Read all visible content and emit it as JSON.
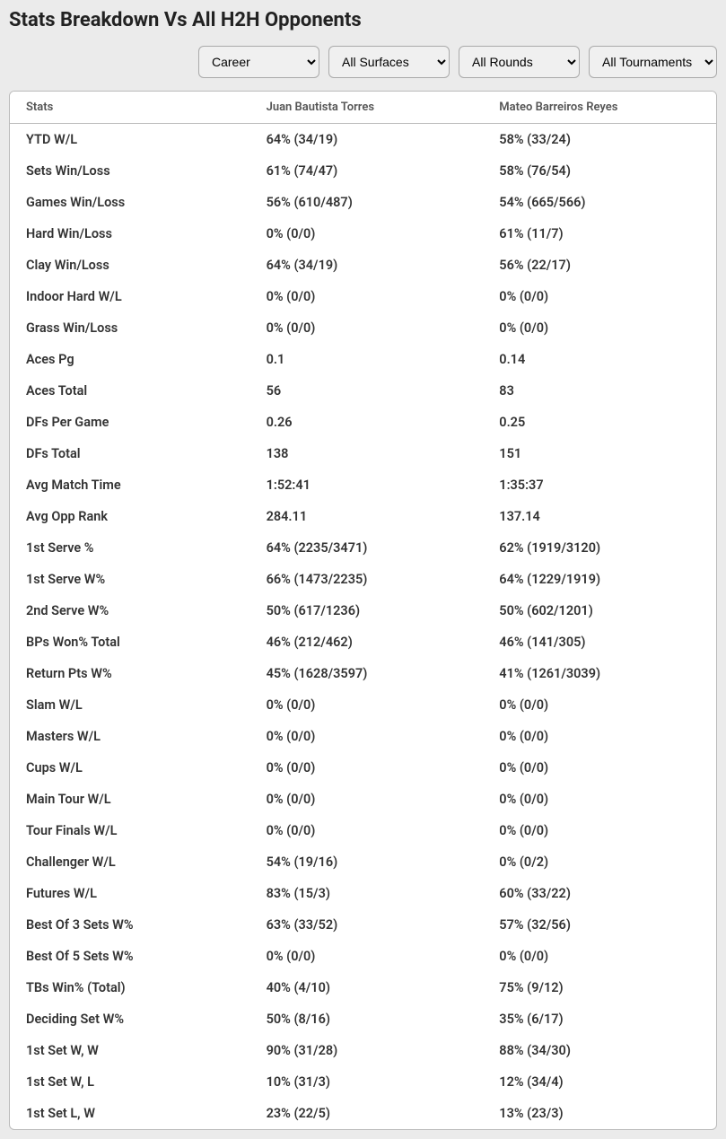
{
  "title": "Stats Breakdown Vs All H2H Opponents",
  "filters": {
    "period": "Career",
    "surface": "All Surfaces",
    "round": "All Rounds",
    "tournament": "All Tournaments"
  },
  "columns": {
    "stats": "Stats",
    "player1": "Juan Bautista Torres",
    "player2": "Mateo Barreiros Reyes"
  },
  "rows": [
    {
      "label": "YTD W/L",
      "p1": "64% (34/19)",
      "p2": "58% (33/24)"
    },
    {
      "label": "Sets Win/Loss",
      "p1": "61% (74/47)",
      "p2": "58% (76/54)"
    },
    {
      "label": "Games Win/Loss",
      "p1": "56% (610/487)",
      "p2": "54% (665/566)"
    },
    {
      "label": "Hard Win/Loss",
      "p1": "0% (0/0)",
      "p2": "61% (11/7)"
    },
    {
      "label": "Clay Win/Loss",
      "p1": "64% (34/19)",
      "p2": "56% (22/17)"
    },
    {
      "label": "Indoor Hard W/L",
      "p1": "0% (0/0)",
      "p2": "0% (0/0)"
    },
    {
      "label": "Grass Win/Loss",
      "p1": "0% (0/0)",
      "p2": "0% (0/0)"
    },
    {
      "label": "Aces Pg",
      "p1": "0.1",
      "p2": "0.14"
    },
    {
      "label": "Aces Total",
      "p1": "56",
      "p2": "83"
    },
    {
      "label": "DFs Per Game",
      "p1": "0.26",
      "p2": "0.25"
    },
    {
      "label": "DFs Total",
      "p1": "138",
      "p2": "151"
    },
    {
      "label": "Avg Match Time",
      "p1": "1:52:41",
      "p2": "1:35:37"
    },
    {
      "label": "Avg Opp Rank",
      "p1": "284.11",
      "p2": "137.14"
    },
    {
      "label": "1st Serve %",
      "p1": "64% (2235/3471)",
      "p2": "62% (1919/3120)"
    },
    {
      "label": "1st Serve W%",
      "p1": "66% (1473/2235)",
      "p2": "64% (1229/1919)"
    },
    {
      "label": "2nd Serve W%",
      "p1": "50% (617/1236)",
      "p2": "50% (602/1201)"
    },
    {
      "label": "BPs Won% Total",
      "p1": "46% (212/462)",
      "p2": "46% (141/305)"
    },
    {
      "label": "Return Pts W%",
      "p1": "45% (1628/3597)",
      "p2": "41% (1261/3039)"
    },
    {
      "label": "Slam W/L",
      "p1": "0% (0/0)",
      "p2": "0% (0/0)"
    },
    {
      "label": "Masters W/L",
      "p1": "0% (0/0)",
      "p2": "0% (0/0)"
    },
    {
      "label": "Cups W/L",
      "p1": "0% (0/0)",
      "p2": "0% (0/0)"
    },
    {
      "label": "Main Tour W/L",
      "p1": "0% (0/0)",
      "p2": "0% (0/0)"
    },
    {
      "label": "Tour Finals W/L",
      "p1": "0% (0/0)",
      "p2": "0% (0/0)"
    },
    {
      "label": "Challenger W/L",
      "p1": "54% (19/16)",
      "p2": "0% (0/2)"
    },
    {
      "label": "Futures W/L",
      "p1": "83% (15/3)",
      "p2": "60% (33/22)"
    },
    {
      "label": "Best Of 3 Sets W%",
      "p1": "63% (33/52)",
      "p2": "57% (32/56)"
    },
    {
      "label": "Best Of 5 Sets W%",
      "p1": "0% (0/0)",
      "p2": "0% (0/0)"
    },
    {
      "label": "TBs Win% (Total)",
      "p1": "40% (4/10)",
      "p2": "75% (9/12)"
    },
    {
      "label": "Deciding Set W%",
      "p1": "50% (8/16)",
      "p2": "35% (6/17)"
    },
    {
      "label": "1st Set W, W",
      "p1": "90% (31/28)",
      "p2": "88% (34/30)"
    },
    {
      "label": "1st Set W, L",
      "p1": "10% (31/3)",
      "p2": "12% (34/4)"
    },
    {
      "label": "1st Set L, W",
      "p1": "23% (22/5)",
      "p2": "13% (23/3)"
    }
  ]
}
